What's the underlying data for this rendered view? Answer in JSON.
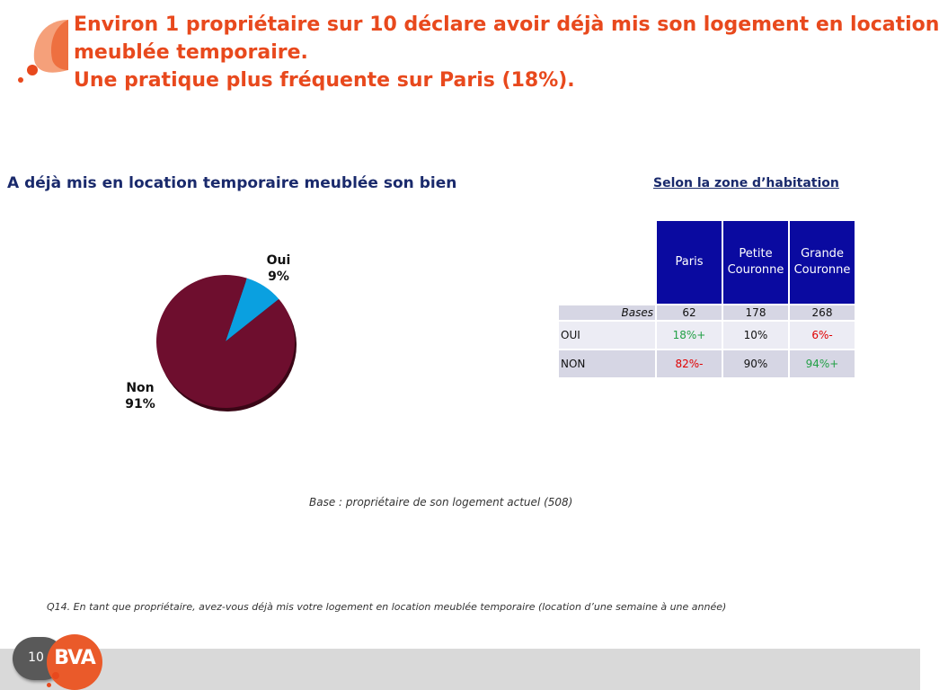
{
  "title": {
    "line1": "Environ 1 propriétaire sur 10 déclare avoir déjà mis son logement en location",
    "line2": "meublée temporaire.",
    "line3": "Une pratique plus fréquente sur Paris (18%)."
  },
  "colors": {
    "title": "#e8491d",
    "heading": "#1a2a6c",
    "pie_non": "#6e0e2e",
    "pie_oui": "#0aa0e0",
    "table_header": "#0a0aa0",
    "positive": "#22a046",
    "negative": "#e00000",
    "footer_bar": "#d9d9d9",
    "logo": "#ea5a2a"
  },
  "chart_data": [
    {
      "type": "pie",
      "title": "A déjà mis en location temporaire meublée son bien",
      "categories": [
        "Oui",
        "Non"
      ],
      "values": [
        9,
        91
      ],
      "value_labels": [
        "9%",
        "91%"
      ]
    },
    {
      "type": "table",
      "title": "Selon la zone d’habitation",
      "columns": [
        "Paris",
        "Petite Couronne",
        "Grande Couronne"
      ],
      "column_lines": [
        [
          "Paris"
        ],
        [
          "Petite",
          "Couronne"
        ],
        [
          "Grande",
          "Couronne"
        ]
      ],
      "bases_label": "Bases",
      "bases": [
        "62",
        "178",
        "268"
      ],
      "rows": [
        {
          "label": "OUI",
          "cells": [
            {
              "text": "18%+",
              "tone": "positive"
            },
            {
              "text": "10%",
              "tone": "neutral"
            },
            {
              "text": "6%-",
              "tone": "negative"
            }
          ]
        },
        {
          "label": "NON",
          "cells": [
            {
              "text": "82%-",
              "tone": "negative"
            },
            {
              "text": "90%",
              "tone": "neutral"
            },
            {
              "text": "94%+",
              "tone": "positive"
            }
          ]
        }
      ]
    }
  ],
  "base_note": "Base : propriétaire de son logement actuel (508)",
  "question": "Q14. En tant que propriétaire, avez-vous déjà mis votre logement en location meublée temporaire (location d’une semaine à une année)",
  "footer": {
    "page_number": "10",
    "logo_text": "BVA"
  }
}
